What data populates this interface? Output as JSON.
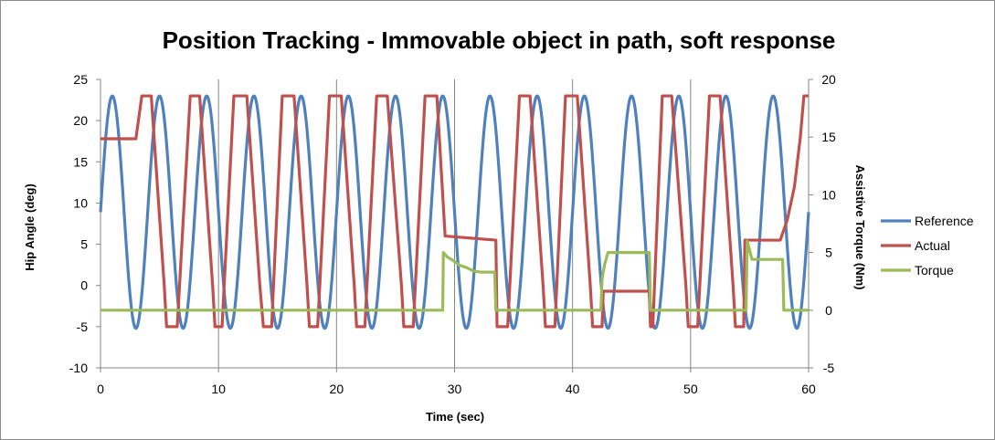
{
  "chart_data": {
    "type": "line",
    "title": "Position Tracking - Immovable object in path, soft response",
    "xlabel": "Time (sec)",
    "ylabel": "Hip Angle (deg)",
    "y2label": "Assistive Torque (Nm)",
    "xlim": [
      0,
      60
    ],
    "ylim": [
      -10,
      25
    ],
    "y2lim": [
      -5,
      20
    ],
    "xticks": [
      0,
      10,
      20,
      30,
      40,
      50,
      60
    ],
    "yticks": [
      -10,
      -5,
      0,
      5,
      10,
      15,
      20,
      25
    ],
    "y2ticks": [
      -5,
      0,
      5,
      10,
      15,
      20
    ],
    "grid": "vertical",
    "legend_position": "right",
    "series": [
      {
        "name": "Reference",
        "axis": "left",
        "color": "#4f81bd",
        "function": "sine",
        "offset": 8.9,
        "amplitude": 14.1,
        "period": 4,
        "xrange": [
          0,
          60
        ]
      },
      {
        "name": "Actual",
        "axis": "left",
        "color": "#c0504d",
        "points": [
          [
            0,
            17.8
          ],
          [
            3.0,
            17.8
          ],
          [
            3.5,
            23
          ],
          [
            4.3,
            23
          ],
          [
            5.4,
            0
          ],
          [
            5.6,
            -5
          ],
          [
            6.5,
            -5
          ],
          [
            7.6,
            23
          ],
          [
            8.4,
            23
          ],
          [
            9.5,
            0
          ],
          [
            9.7,
            -5
          ],
          [
            10.3,
            -5
          ],
          [
            11.3,
            23
          ],
          [
            12.4,
            23
          ],
          [
            13.5,
            0
          ],
          [
            13.8,
            -5
          ],
          [
            14.5,
            -5
          ],
          [
            15.4,
            23
          ],
          [
            16.4,
            23
          ],
          [
            17.5,
            0
          ],
          [
            17.7,
            -5
          ],
          [
            18.4,
            -5
          ],
          [
            19.4,
            23
          ],
          [
            20.4,
            23
          ],
          [
            21.5,
            0
          ],
          [
            21.7,
            -5
          ],
          [
            22.4,
            -5
          ],
          [
            23.4,
            23
          ],
          [
            24.3,
            23
          ],
          [
            25.5,
            0
          ],
          [
            25.7,
            -5
          ],
          [
            26.5,
            -5
          ],
          [
            27.5,
            23
          ],
          [
            28.5,
            23
          ],
          [
            29.2,
            6
          ],
          [
            33.5,
            5.5
          ],
          [
            33.6,
            -5
          ],
          [
            34.5,
            -5
          ],
          [
            35.5,
            23
          ],
          [
            36.4,
            23
          ],
          [
            37.5,
            0
          ],
          [
            37.7,
            -5
          ],
          [
            38.5,
            -5
          ],
          [
            39.4,
            23
          ],
          [
            40.4,
            23
          ],
          [
            41.5,
            0
          ],
          [
            41.7,
            -5
          ],
          [
            42.5,
            -5
          ],
          [
            42.6,
            -0.7
          ],
          [
            46.5,
            -0.7
          ],
          [
            46.6,
            -5
          ],
          [
            46.8,
            -5
          ],
          [
            47.6,
            23
          ],
          [
            48.4,
            23
          ],
          [
            49.6,
            0
          ],
          [
            49.8,
            -5
          ],
          [
            50.6,
            -5
          ],
          [
            51.6,
            23
          ],
          [
            52.5,
            23
          ],
          [
            53.6,
            0
          ],
          [
            53.8,
            -5
          ],
          [
            54.5,
            -5
          ],
          [
            54.6,
            5.5
          ],
          [
            57.6,
            5.5
          ],
          [
            58.2,
            8
          ],
          [
            58.8,
            12
          ],
          [
            59.3,
            18
          ],
          [
            59.6,
            23
          ],
          [
            60,
            23
          ]
        ]
      },
      {
        "name": "Torque",
        "axis": "right",
        "color": "#9bbb59",
        "points": [
          [
            0,
            0
          ],
          [
            29.0,
            0
          ],
          [
            29.05,
            5
          ],
          [
            29.4,
            4.6
          ],
          [
            29.9,
            4.3
          ],
          [
            30.4,
            3.9
          ],
          [
            31.0,
            3.7
          ],
          [
            31.6,
            3.4
          ],
          [
            32.2,
            3.3
          ],
          [
            33.4,
            3.3
          ],
          [
            33.5,
            0
          ],
          [
            42.4,
            0
          ],
          [
            42.5,
            2.7
          ],
          [
            42.7,
            3.9
          ],
          [
            43.0,
            5
          ],
          [
            46.5,
            5
          ],
          [
            46.6,
            0
          ],
          [
            54.7,
            0
          ],
          [
            54.8,
            6
          ],
          [
            55.2,
            4.4
          ],
          [
            57.8,
            4.4
          ],
          [
            57.9,
            0
          ],
          [
            60,
            0
          ]
        ]
      }
    ]
  }
}
